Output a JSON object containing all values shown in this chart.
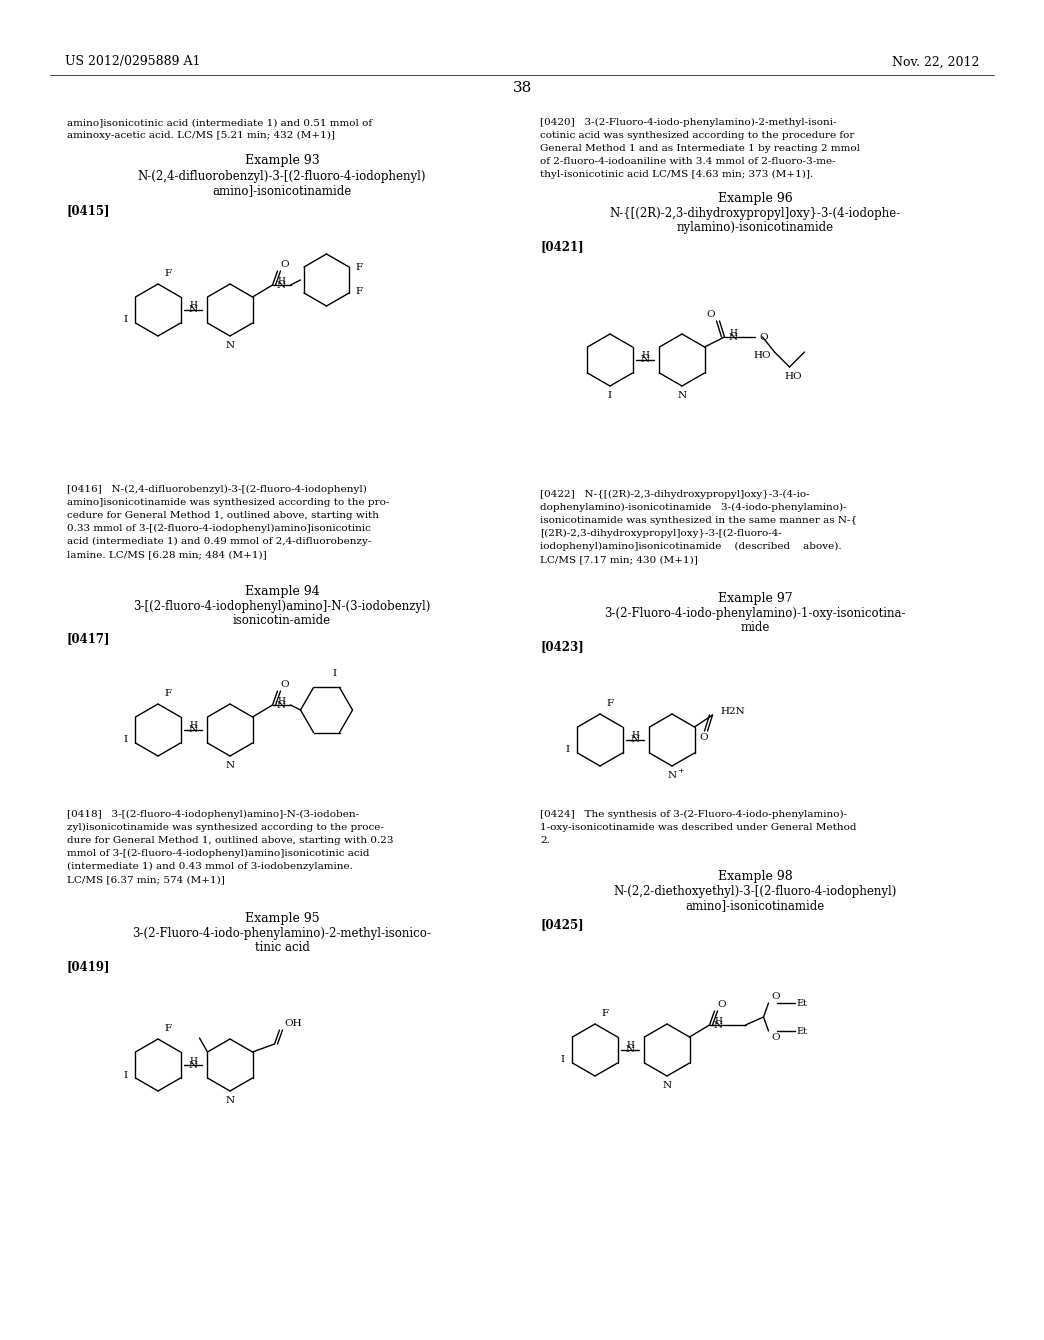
{
  "background_color": "#ffffff",
  "page_number": "38",
  "header_left": "US 2012/0295889 A1",
  "header_right": "Nov. 22, 2012",
  "font_family": "serif",
  "content": {
    "top_text_left": "amino]isonicotinic acid (intermediate 1) and 0.51 mmol of\naminoxy-acetic acid. LC/MS [5.21 min; 432 (M+1)]",
    "example93_title": "Example 93",
    "example93_name": "N-(2,4-difluorobenzyl)-3-[(2-fluoro-4-iodophenyl)\namino]-isonicotinamide",
    "example93_tag": "[0415]",
    "example93_desc": "[0416]    N-(2,4-difluorobenzyl)-3-[(2-fluoro-4-iodophenyl)\namino]isonicotinamide was synthesized according to the pro-\ncedure for General Method 1, outlined above, starting with\n0.33 mmol of 3-[(2-fluoro-4-iodophenyl)amino]isonicotinic\nacid (intermediate 1) and 0.49 mmol of 2,4-difluorobenzy-\nlamine. LC/MS [6.28 min; 484 (M+1)]",
    "example94_title": "Example 94",
    "example94_name": "3-[(2-fluoro-4-iodophenyl)amino]-N-(3-iodobenzyl)\nisonicotin-amide",
    "example94_tag": "[0417]",
    "example94_desc": "[0418]    3-[(2-fluoro-4-iodophenyl)amino]-N-(3-iodoben-\nzyl)isonicotinamide was synthesized according to the proce-\ndure for General Method 1, outlined above, starting with 0.23\nmmol of 3-[(2-fluoro-4-iodophenyl)amino]isonicotinic acid\n(intermediate 1) and 0.43 mmol of 3-iodobenzylamine.\nLC/MS [6.37 min; 574 (M+1)]",
    "example95_title": "Example 95",
    "example95_name": "3-(2-Fluoro-4-iodo-phenylamino)-2-methyl-isonico-\ntinic acid",
    "example95_tag": "[0419]",
    "top_text_right": "[0420]    3-(2-Fluoro-4-iodo-phenylamino)-2-methyl-isoni-\ncotinic acid was synthesized according to the procedure for\nGeneral Method 1 and as Intermediate 1 by reacting 2 mmol\nof 2-fluoro-4-iodoaniline with 3.4 mmol of 2-fluoro-3-me-\nthyl-isonicotinic acid LC/MS [4.63 min; 373 (M+1)].",
    "example96_title": "Example 96",
    "example96_name": "N-{[(2R)-2,3-dihydroxypropyl]oxy}-3-(4-iodophe-\nnylamino)-isonicotinamide",
    "example96_tag": "[0421]",
    "example96_desc": "[0422]    N-{[(2R)-2,3-dihydroxypropyl]oxy}-3-(4-io-\ndophenylamino)-isonicotinamide   3-(4-iodo-phenylamino)-\nisonicotinamide was synthesized in the same manner as N-{\n[(2R)-2,3-dihydroxypropyl]oxy}-3-[(2-fluoro-4-\niodophenyl)amino]isonicotinamide    (described    above).\nLC/MS [7.17 min; 430 (M+1)]",
    "example97_title": "Example 97",
    "example97_name": "3-(2-Fluoro-4-iodo-phenylamino)-1-oxy-isonicotina-\nmide",
    "example97_tag": "[0423]",
    "example97_desc": "[0424]    The synthesis of 3-(2-Fluoro-4-iodo-phenylamino)-\n1-oxy-isonicotinamide was described under General Method\n2.",
    "example98_title": "Example 98",
    "example98_name": "N-(2,2-diethoxyethyl)-3-[(2-fluoro-4-iodophenyl)\namino]-isonicotinamide",
    "example98_tag": "[0425]"
  }
}
